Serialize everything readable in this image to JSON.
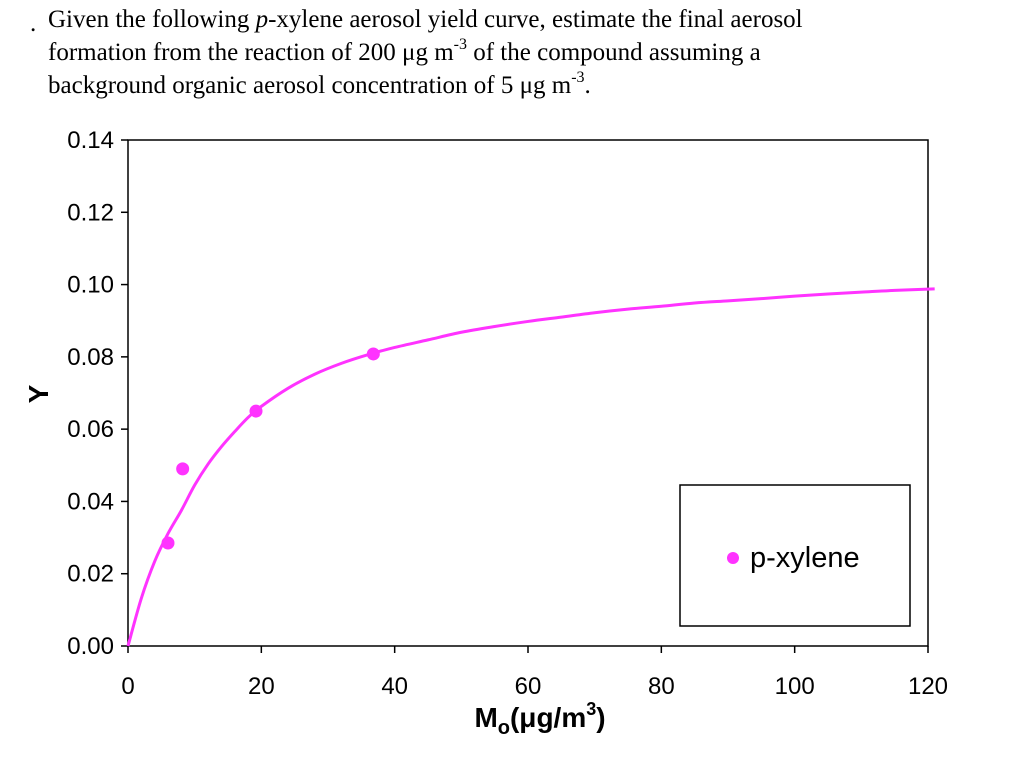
{
  "question": {
    "bullet": ".",
    "line1_a": "Given the following ",
    "line1_italic": "p",
    "line1_b": "-xylene aerosol yield curve, estimate the final aerosol",
    "line2_a": "formation from the reaction of 200 μg m",
    "line2_sup": "-3",
    "line2_b": " of the compound assuming a",
    "line3_a": "background organic aerosol concentration of 5 μg m",
    "line3_sup": "-3",
    "line3_b": "."
  },
  "chart_data": {
    "type": "scatter",
    "xlabel_main": "M",
    "xlabel_sub": "o",
    "xlabel_rest": "(μg/m",
    "xlabel_sup": "3",
    "xlabel_end": ")",
    "ylabel": "Y",
    "xlim": [
      0,
      120
    ],
    "ylim": [
      0,
      0.14
    ],
    "xticks": [
      "0",
      "20",
      "40",
      "60",
      "80",
      "100",
      "120"
    ],
    "yticks": [
      "0.00",
      "0.02",
      "0.04",
      "0.06",
      "0.08",
      "0.10",
      "0.12",
      "0.14"
    ],
    "grid": false,
    "legend_position": "lower-right",
    "series": [
      {
        "name": "p-xylene",
        "color": "#ff33ff",
        "points": [
          {
            "x": 6.0,
            "y": 0.0285
          },
          {
            "x": 8.2,
            "y": 0.049
          },
          {
            "x": 19.2,
            "y": 0.065
          },
          {
            "x": 36.8,
            "y": 0.0808
          }
        ]
      }
    ],
    "fit_curve": {
      "color": "#ff33ff",
      "x_end": 121,
      "points": [
        [
          0,
          0
        ],
        [
          2,
          0.0132
        ],
        [
          4,
          0.0234
        ],
        [
          6,
          0.0311
        ],
        [
          8,
          0.0375
        ],
        [
          10,
          0.0445
        ],
        [
          12,
          0.0503
        ],
        [
          14,
          0.0551
        ],
        [
          16,
          0.0593
        ],
        [
          18,
          0.0632
        ],
        [
          20,
          0.0663
        ],
        [
          24,
          0.0713
        ],
        [
          28,
          0.0752
        ],
        [
          32,
          0.0782
        ],
        [
          36,
          0.0806
        ],
        [
          40,
          0.0826
        ],
        [
          45,
          0.0847
        ],
        [
          50,
          0.0868
        ],
        [
          55,
          0.0884
        ],
        [
          60,
          0.0898
        ],
        [
          65,
          0.091
        ],
        [
          70,
          0.0922
        ],
        [
          75,
          0.0932
        ],
        [
          80,
          0.094
        ],
        [
          85,
          0.0949
        ],
        [
          90,
          0.0955
        ],
        [
          95,
          0.0961
        ],
        [
          100,
          0.0968
        ],
        [
          105,
          0.0974
        ],
        [
          110,
          0.0979
        ],
        [
          115,
          0.0984
        ],
        [
          121,
          0.0988
        ]
      ]
    }
  }
}
